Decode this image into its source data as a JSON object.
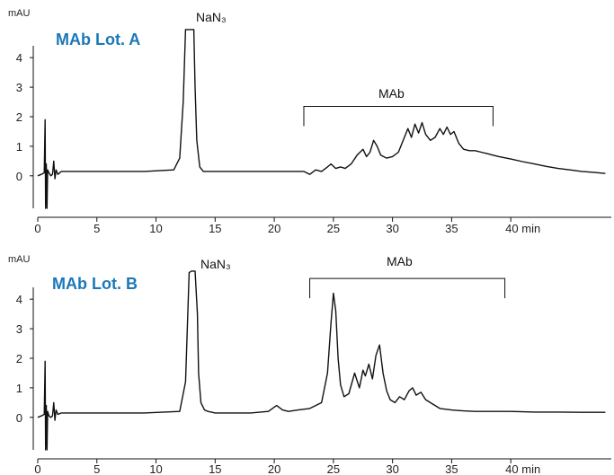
{
  "chart_data": [
    {
      "type": "line",
      "title": "MAb Lot. A",
      "y_unit": "mAU",
      "x_unit": "min",
      "xlim": [
        0,
        48.5
      ],
      "ylim": [
        -1.1,
        5.1
      ],
      "x_ticks": [
        0,
        5,
        10,
        15,
        20,
        25,
        30,
        35,
        40
      ],
      "x_tick_labels": [
        "0",
        "5",
        "10",
        "15",
        "20",
        "25",
        "30",
        "35",
        "40 min"
      ],
      "y_ticks": [
        0,
        1,
        2,
        3,
        4
      ],
      "y_tick_labels": [
        "0",
        "1",
        "2",
        "3",
        "4"
      ],
      "grid": false,
      "series": [
        {
          "color": "#111111",
          "x": [
            0,
            0.3,
            0.55,
            0.62,
            0.66,
            0.72,
            0.78,
            0.84,
            0.95,
            1.1,
            1.25,
            1.35,
            1.45,
            1.55,
            1.7,
            2.0,
            2.5,
            3,
            6,
            9,
            11.5,
            12.0,
            12.3,
            12.5,
            12.6,
            12.7,
            13.0,
            13.2,
            13.3,
            13.45,
            13.7,
            14.0,
            15,
            18,
            22.5,
            23.0,
            23.5,
            24.0,
            24.5,
            24.8,
            25.2,
            25.6,
            26.0,
            26.5,
            27.0,
            27.5,
            27.8,
            28.1,
            28.4,
            28.7,
            29.0,
            29.5,
            30.0,
            30.5,
            31.0,
            31.3,
            31.6,
            31.9,
            32.2,
            32.5,
            32.8,
            33.2,
            33.6,
            34.0,
            34.3,
            34.6,
            34.9,
            35.2,
            35.6,
            36.0,
            36.5,
            37.0,
            37.5,
            38.0,
            38.5,
            39.0,
            40.0,
            41.0,
            42.0,
            43.0,
            44.0,
            45.0,
            46.0,
            47.0,
            48.0
          ],
          "y": [
            0,
            0.05,
            0.1,
            1.9,
            -1.1,
            0.4,
            -1.1,
            0.2,
            0.1,
            0,
            0.05,
            0.5,
            -0.1,
            0.2,
            0.05,
            0.15,
            0.15,
            0.15,
            0.15,
            0.15,
            0.2,
            0.6,
            2.5,
            4.95,
            4.95,
            4.95,
            4.95,
            4.95,
            3.0,
            1.2,
            0.3,
            0.15,
            0.15,
            0.15,
            0.15,
            0.05,
            0.2,
            0.15,
            0.3,
            0.4,
            0.25,
            0.3,
            0.25,
            0.4,
            0.7,
            0.9,
            0.65,
            0.8,
            1.2,
            1.0,
            0.7,
            0.6,
            0.65,
            0.8,
            1.3,
            1.6,
            1.3,
            1.75,
            1.45,
            1.8,
            1.4,
            1.2,
            1.3,
            1.6,
            1.4,
            1.65,
            1.4,
            1.5,
            1.1,
            0.9,
            0.85,
            0.85,
            0.8,
            0.75,
            0.7,
            0.65,
            0.57,
            0.48,
            0.4,
            0.32,
            0.25,
            0.2,
            0.15,
            0.12,
            0.08
          ]
        }
      ],
      "annotations": [
        {
          "text": "NaN₃",
          "x": 13.2
        },
        {
          "text": "MAb",
          "x_range": [
            22.5,
            38.5
          ],
          "y": 2.35
        }
      ]
    },
    {
      "type": "line",
      "title": "MAb Lot. B",
      "y_unit": "mAU",
      "x_unit": "min",
      "xlim": [
        0,
        48.5
      ],
      "ylim": [
        -1.1,
        5.1
      ],
      "x_ticks": [
        0,
        5,
        10,
        15,
        20,
        25,
        30,
        35,
        40
      ],
      "x_tick_labels": [
        "0",
        "5",
        "10",
        "15",
        "20",
        "25",
        "30",
        "35",
        "40 min"
      ],
      "y_ticks": [
        0,
        1,
        2,
        3,
        4
      ],
      "y_tick_labels": [
        "0",
        "1",
        "2",
        "3",
        "4"
      ],
      "grid": false,
      "series": [
        {
          "color": "#111111",
          "x": [
            0,
            0.3,
            0.55,
            0.62,
            0.66,
            0.72,
            0.78,
            0.84,
            0.95,
            1.1,
            1.25,
            1.35,
            1.45,
            1.55,
            1.7,
            2.0,
            2.5,
            3,
            6,
            9,
            12.0,
            12.5,
            12.8,
            13.0,
            13.1,
            13.3,
            13.5,
            13.6,
            13.8,
            14.1,
            14.4,
            15,
            18,
            19.5,
            20.2,
            20.7,
            21.2,
            22,
            23,
            24,
            24.5,
            24.8,
            25.0,
            25.2,
            25.4,
            25.6,
            25.9,
            26.3,
            26.8,
            27.2,
            27.5,
            27.7,
            28.0,
            28.3,
            28.6,
            28.9,
            29.2,
            29.5,
            29.8,
            30.2,
            30.6,
            31.0,
            31.4,
            31.7,
            32.0,
            32.4,
            32.8,
            33.2,
            33.6,
            34.0,
            35.0,
            36.0,
            37.0,
            38.0,
            39.0,
            40.0,
            42.0,
            44.0,
            46.0,
            48.0
          ],
          "y": [
            0,
            0.05,
            0.1,
            1.9,
            -1.1,
            0.4,
            -1.1,
            0.2,
            0.05,
            0,
            0.05,
            0.5,
            -0.1,
            0.25,
            0.1,
            0.15,
            0.15,
            0.15,
            0.15,
            0.15,
            0.2,
            1.2,
            4.9,
            4.95,
            4.95,
            4.95,
            3.5,
            1.5,
            0.5,
            0.25,
            0.2,
            0.15,
            0.15,
            0.2,
            0.4,
            0.25,
            0.2,
            0.25,
            0.3,
            0.5,
            1.5,
            3.2,
            4.2,
            3.6,
            2.0,
            1.1,
            0.7,
            0.8,
            1.5,
            1.0,
            1.6,
            1.4,
            1.8,
            1.3,
            2.1,
            2.45,
            1.5,
            0.9,
            0.6,
            0.5,
            0.7,
            0.6,
            0.9,
            1.0,
            0.75,
            0.85,
            0.6,
            0.5,
            0.4,
            0.3,
            0.25,
            0.22,
            0.2,
            0.2,
            0.2,
            0.2,
            0.18,
            0.18,
            0.17,
            0.17
          ]
        }
      ],
      "annotations": [
        {
          "text": "NaN₃",
          "x": 13.6
        },
        {
          "text": "MAb",
          "x_range": [
            23.0,
            39.5
          ],
          "y": 4.7
        }
      ]
    }
  ]
}
